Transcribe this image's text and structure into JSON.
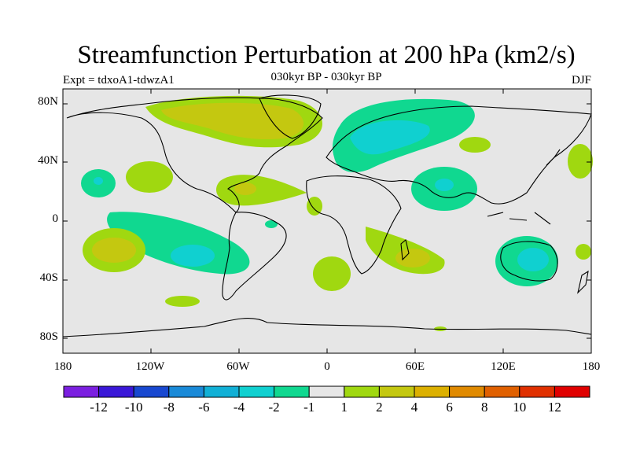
{
  "title": "Streamfunction Perturbation at 200 hPa (km2/s)",
  "subtitle": "030kyr BP - 030kyr BP",
  "experiment": "Expt = tdxoA1-tdwzA1",
  "season": "DJF",
  "lat_ticks": [
    "80N",
    "40N",
    "0",
    "40S",
    "80S"
  ],
  "lon_ticks": [
    "180",
    "120W",
    "60W",
    "0",
    "60E",
    "120E",
    "180"
  ],
  "colorbar": {
    "labels": [
      "-12",
      "-10",
      "-8",
      "-6",
      "-4",
      "-2",
      "-1",
      "1",
      "2",
      "4",
      "6",
      "8",
      "10",
      "12"
    ],
    "colors": [
      "#7b1fe0",
      "#3a18d8",
      "#1848d0",
      "#1a8ad8",
      "#11b0d6",
      "#10d0d0",
      "#10d890",
      "#e6e6e6",
      "#a0d810",
      "#c4c810",
      "#dcb000",
      "#e08a00",
      "#e06000",
      "#e03000",
      "#e00000"
    ]
  },
  "colors": {
    "ocean_background": "#e6e6e6",
    "coastline": "#000000"
  }
}
